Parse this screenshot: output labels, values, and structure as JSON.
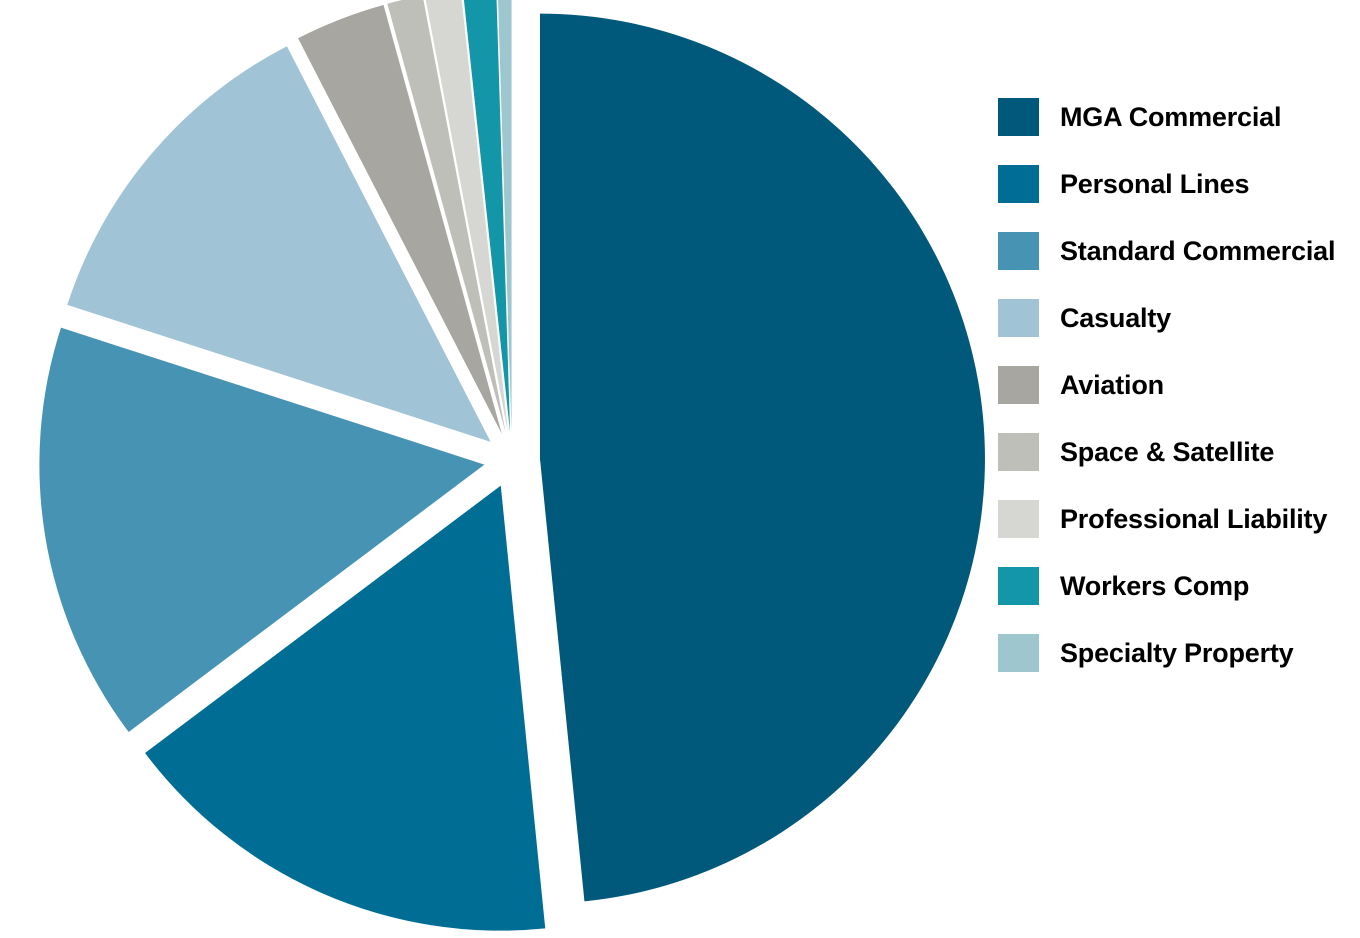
{
  "chart_data": {
    "type": "pie",
    "title": "",
    "slices": [
      {
        "label": "MGA Commercial",
        "value": 48.6,
        "color": "#00587A"
      },
      {
        "label": "Personal Lines",
        "value": 16.4,
        "color": "#006D94"
      },
      {
        "label": "Standard Commercial",
        "value": 15.3,
        "color": "#4793B3"
      },
      {
        "label": "Casualty",
        "value": 12.5,
        "color": "#A0C3D6"
      },
      {
        "label": "Aviation",
        "value": 3.3,
        "color": "#A7A6A1"
      },
      {
        "label": "Space & Satellite",
        "value": 1.3,
        "color": "#BFBFBA"
      },
      {
        "label": "Professional Liability",
        "value": 1.3,
        "color": "#D6D6D3"
      },
      {
        "label": "Workers Comp",
        "value": 1.2,
        "color": "#1296A8"
      },
      {
        "label": "Specialty Property",
        "value": 0.5,
        "color": "#9DC6CF"
      }
    ],
    "legend_position": "right"
  }
}
